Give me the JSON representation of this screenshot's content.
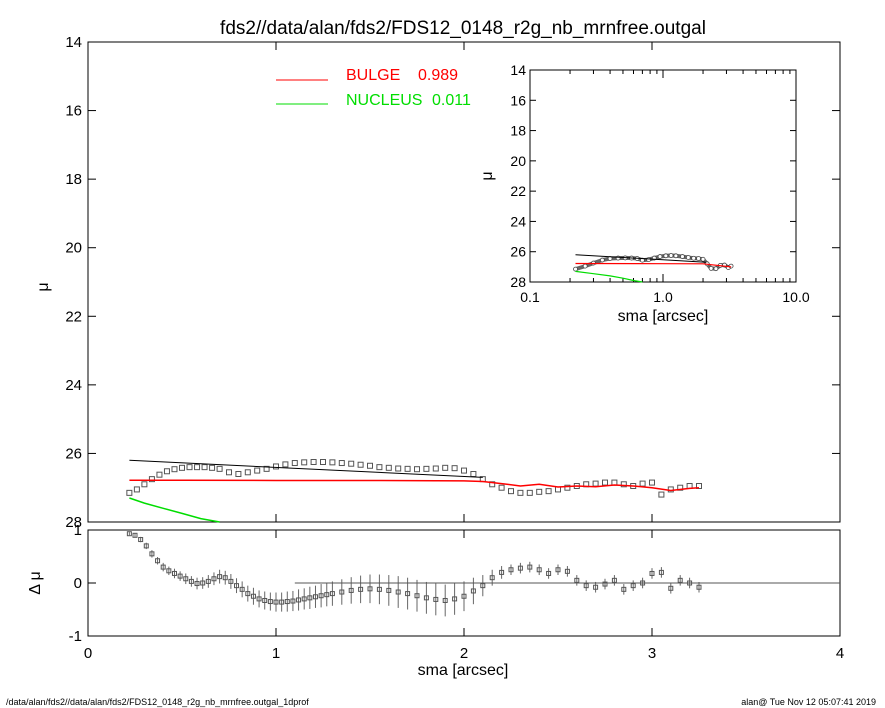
{
  "title": "fds2//data/alan/fds2/FDS12_0148_r2g_nb_mrnfree.outgal",
  "footer_left": "/data/alan/fds2//data/alan/fds2/FDS12_0148_r2g_nb_mrnfree.outgal_1dprof",
  "footer_right": "alan@  Tue Nov 12 05:07:41 2019",
  "legend": [
    {
      "label": "BULGE",
      "value": "0.989",
      "color": "#ff0000"
    },
    {
      "label": "NUCLEUS",
      "value": "0.011",
      "color": "#00dd00"
    }
  ],
  "colors": {
    "bulge": "#ff0000",
    "nucleus": "#00dd00",
    "data": "#555555",
    "total": "#000000"
  },
  "chart_data": [
    {
      "type": "scatter",
      "panel": "main",
      "xlabel": "",
      "ylabel": "μ",
      "xlim": [
        0,
        4
      ],
      "ylim": [
        28,
        14
      ],
      "yticks": [
        "14",
        "16",
        "18",
        "20",
        "22",
        "24",
        "26",
        "28"
      ],
      "series": [
        {
          "kind": "data",
          "x": [
            0.22,
            0.26,
            0.3,
            0.34,
            0.38,
            0.42,
            0.46,
            0.5,
            0.54,
            0.58,
            0.62,
            0.66,
            0.7,
            0.75,
            0.8,
            0.85,
            0.9,
            0.95,
            1.0,
            1.05,
            1.1,
            1.15,
            1.2,
            1.25,
            1.3,
            1.35,
            1.4,
            1.45,
            1.5,
            1.55,
            1.6,
            1.65,
            1.7,
            1.75,
            1.8,
            1.85,
            1.9,
            1.95,
            2.0,
            2.05,
            2.1,
            2.15,
            2.2,
            2.25,
            2.3,
            2.35,
            2.4,
            2.45,
            2.5,
            2.55,
            2.6,
            2.65,
            2.7,
            2.75,
            2.8,
            2.85,
            2.9,
            2.95,
            3.0,
            3.05,
            3.1,
            3.15,
            3.2,
            3.25
          ],
          "y": [
            27.15,
            27.05,
            26.9,
            26.75,
            26.62,
            26.52,
            26.46,
            26.42,
            26.4,
            26.4,
            26.4,
            26.42,
            26.45,
            26.55,
            26.6,
            26.55,
            26.5,
            26.45,
            26.38,
            26.32,
            26.28,
            26.26,
            26.25,
            26.25,
            26.26,
            26.28,
            26.3,
            26.33,
            26.36,
            26.4,
            26.42,
            26.44,
            26.45,
            26.46,
            26.45,
            26.44,
            26.42,
            26.43,
            26.5,
            26.6,
            26.75,
            26.9,
            27.0,
            27.1,
            27.15,
            27.15,
            27.12,
            27.1,
            27.05,
            27.0,
            26.95,
            26.9,
            26.88,
            26.85,
            26.85,
            26.9,
            26.95,
            26.88,
            26.85,
            27.2,
            27.05,
            27.0,
            26.95,
            26.95
          ]
        },
        {
          "kind": "bulge",
          "x": [
            0.22,
            0.5,
            1.0,
            1.5,
            2.0,
            2.1,
            2.2,
            2.3,
            2.4,
            2.5,
            2.6,
            2.7,
            2.8,
            2.9,
            3.0,
            3.1,
            3.2,
            3.25
          ],
          "y": [
            26.78,
            26.78,
            26.79,
            26.79,
            26.8,
            26.82,
            26.88,
            26.95,
            26.9,
            26.98,
            26.95,
            26.97,
            26.92,
            26.95,
            27.0,
            27.08,
            27.02,
            27.0
          ]
        },
        {
          "kind": "nucleus",
          "x": [
            0.22,
            0.3,
            0.4,
            0.5,
            0.6,
            0.7
          ],
          "y": [
            27.3,
            27.45,
            27.6,
            27.75,
            27.9,
            28.0
          ]
        },
        {
          "kind": "total",
          "x": [
            0.22,
            2.1
          ],
          "y": [
            26.2,
            26.7
          ]
        }
      ]
    },
    {
      "type": "scatter",
      "panel": "residual",
      "xlabel": "sma [arcsec]",
      "ylabel": "Δ μ",
      "xlim": [
        0,
        4
      ],
      "ylim": [
        -1,
        1
      ],
      "xticks": [
        "0",
        "1",
        "2",
        "3",
        "4"
      ],
      "yticks": [
        "1",
        "0",
        "-1"
      ],
      "series": [
        {
          "kind": "residual",
          "x": [
            0.22,
            0.25,
            0.28,
            0.31,
            0.34,
            0.37,
            0.4,
            0.43,
            0.46,
            0.49,
            0.52,
            0.55,
            0.58,
            0.61,
            0.64,
            0.67,
            0.7,
            0.73,
            0.76,
            0.79,
            0.82,
            0.85,
            0.88,
            0.91,
            0.94,
            0.97,
            1.0,
            1.03,
            1.06,
            1.09,
            1.12,
            1.15,
            1.18,
            1.21,
            1.24,
            1.27,
            1.3,
            1.35,
            1.4,
            1.45,
            1.5,
            1.55,
            1.6,
            1.65,
            1.7,
            1.75,
            1.8,
            1.85,
            1.9,
            1.95,
            2.0,
            2.05,
            2.1,
            2.15,
            2.2,
            2.25,
            2.3,
            2.35,
            2.4,
            2.45,
            2.5,
            2.55,
            2.6,
            2.65,
            2.7,
            2.75,
            2.8,
            2.85,
            2.9,
            2.95,
            3.0,
            3.05,
            3.1,
            3.15,
            3.2,
            3.25
          ],
          "y": [
            0.93,
            0.9,
            0.82,
            0.7,
            0.55,
            0.42,
            0.3,
            0.23,
            0.18,
            0.13,
            0.08,
            0.03,
            -0.01,
            0.0,
            0.03,
            0.08,
            0.12,
            0.1,
            0.03,
            -0.05,
            -0.12,
            -0.2,
            -0.25,
            -0.3,
            -0.33,
            -0.35,
            -0.36,
            -0.36,
            -0.35,
            -0.34,
            -0.32,
            -0.3,
            -0.28,
            -0.26,
            -0.24,
            -0.22,
            -0.2,
            -0.17,
            -0.14,
            -0.12,
            -0.11,
            -0.12,
            -0.14,
            -0.17,
            -0.2,
            -0.24,
            -0.28,
            -0.31,
            -0.33,
            -0.3,
            -0.25,
            -0.15,
            -0.05,
            0.1,
            0.2,
            0.25,
            0.28,
            0.3,
            0.25,
            0.18,
            0.25,
            0.22,
            0.05,
            -0.05,
            -0.08,
            -0.02,
            0.05,
            -0.12,
            -0.05,
            0.0,
            0.18,
            0.2,
            -0.1,
            0.05,
            0.0,
            -0.08
          ],
          "err": [
            0.03,
            0.04,
            0.05,
            0.06,
            0.07,
            0.07,
            0.08,
            0.08,
            0.09,
            0.09,
            0.1,
            0.1,
            0.11,
            0.11,
            0.12,
            0.12,
            0.13,
            0.13,
            0.14,
            0.14,
            0.15,
            0.15,
            0.16,
            0.16,
            0.17,
            0.17,
            0.18,
            0.18,
            0.19,
            0.19,
            0.2,
            0.2,
            0.21,
            0.21,
            0.22,
            0.22,
            0.23,
            0.24,
            0.25,
            0.26,
            0.27,
            0.28,
            0.29,
            0.3,
            0.3,
            0.3,
            0.3,
            0.3,
            0.3,
            0.3,
            0.28,
            0.25,
            0.2,
            0.15,
            0.12,
            0.1,
            0.1,
            0.1,
            0.1,
            0.1,
            0.1,
            0.1,
            0.1,
            0.1,
            0.1,
            0.1,
            0.1,
            0.1,
            0.1,
            0.1,
            0.1,
            0.1,
            0.1,
            0.1,
            0.1,
            0.1
          ]
        },
        {
          "kind": "zero",
          "x": [
            1.1,
            4.0
          ],
          "y": [
            0,
            0
          ]
        }
      ]
    },
    {
      "type": "scatter",
      "panel": "inset",
      "xlabel": "sma [arcsec]",
      "ylabel": "μ",
      "xscale": "log",
      "xlim": [
        0.1,
        10.0
      ],
      "ylim": [
        28,
        14
      ],
      "xticks": [
        "0.1",
        "1.0",
        "10.0"
      ],
      "yticks": [
        "14",
        "16",
        "18",
        "20",
        "22",
        "24",
        "26",
        "28"
      ],
      "series": [
        {
          "kind": "data",
          "x": [
            0.22,
            0.26,
            0.3,
            0.35,
            0.4,
            0.46,
            0.52,
            0.58,
            0.64,
            0.7,
            0.78,
            0.86,
            0.95,
            1.05,
            1.15,
            1.25,
            1.4,
            1.55,
            1.7,
            1.85,
            2.0,
            2.15,
            2.3,
            2.5,
            2.7,
            2.9,
            3.1,
            3.25
          ],
          "y": [
            27.15,
            26.95,
            26.75,
            26.55,
            26.45,
            26.42,
            26.41,
            26.42,
            26.45,
            26.56,
            26.52,
            26.42,
            26.32,
            26.27,
            26.25,
            26.27,
            26.32,
            26.38,
            26.43,
            26.45,
            26.5,
            26.8,
            27.1,
            27.12,
            26.9,
            26.88,
            27.05,
            26.95
          ]
        },
        {
          "kind": "bulge",
          "x": [
            0.22,
            1.0,
            2.0,
            3.25
          ],
          "y": [
            26.78,
            26.79,
            26.8,
            27.0
          ]
        },
        {
          "kind": "nucleus",
          "x": [
            0.22,
            0.3,
            0.4,
            0.5,
            0.6,
            0.7
          ],
          "y": [
            27.3,
            27.45,
            27.6,
            27.75,
            27.9,
            28.0
          ]
        },
        {
          "kind": "total",
          "x": [
            0.22,
            2.1
          ],
          "y": [
            26.2,
            26.7
          ]
        }
      ]
    }
  ]
}
